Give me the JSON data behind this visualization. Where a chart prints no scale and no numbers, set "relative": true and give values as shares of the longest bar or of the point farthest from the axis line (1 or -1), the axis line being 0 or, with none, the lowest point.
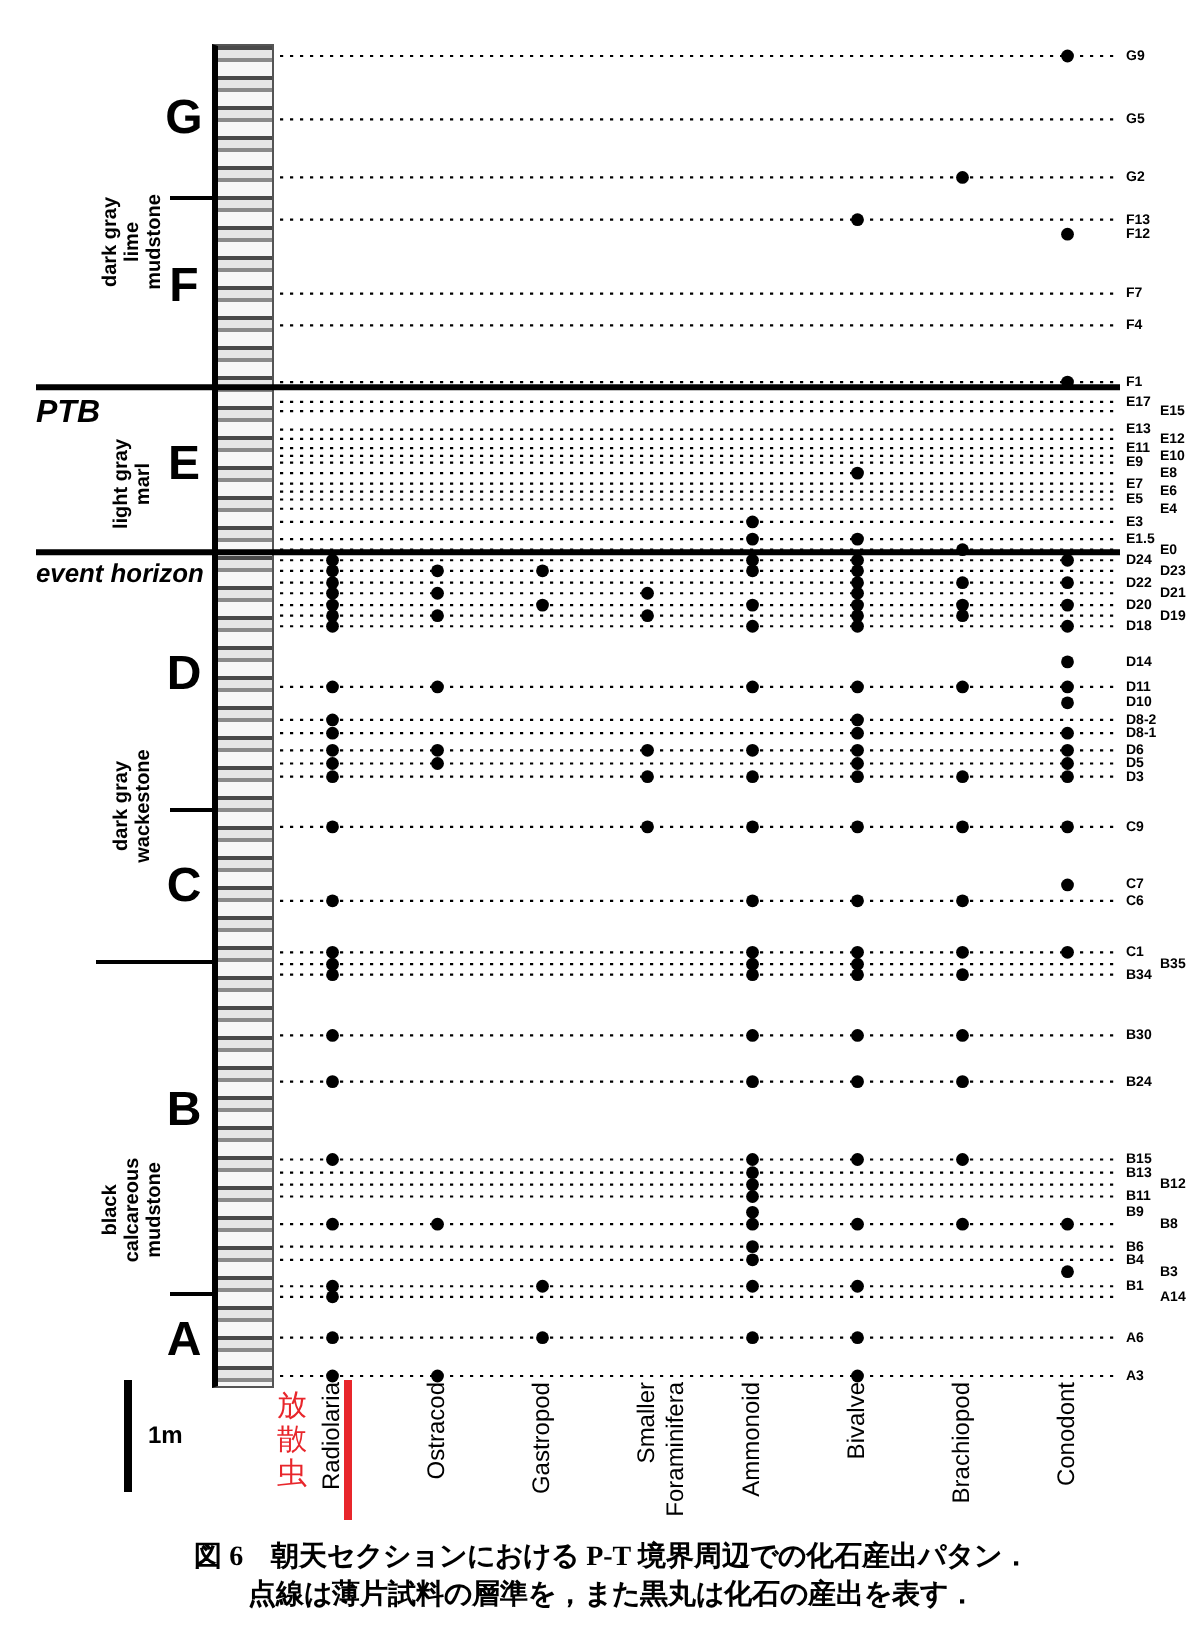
{
  "chart_data": {
    "type": "scatter",
    "relative": true,
    "categories": [
      "Radiolaria",
      "Ostracod",
      "Gastropod",
      "Smaller Foraminifera",
      "Ammonoid",
      "Bivalve",
      "Brachiopod",
      "Conodont"
    ],
    "series": [
      {
        "color": "#000000",
        "x": [
          "Radiolaria",
          "Radiolaria",
          "Radiolaria",
          "Radiolaria",
          "Radiolaria",
          "Radiolaria",
          "Radiolaria",
          "Radiolaria",
          "Radiolaria",
          "Radiolaria",
          "Radiolaria",
          "Radiolaria",
          "Radiolaria",
          "Radiolaria",
          "Radiolaria",
          "Radiolaria",
          "Radiolaria",
          "Radiolaria",
          "Radiolaria",
          "Radiolaria",
          "Radiolaria",
          "Radiolaria",
          "Radiolaria",
          "Radiolaria",
          "Radiolaria",
          "Radiolaria"
        ],
        "values": [
          0.618,
          0.61,
          0.601,
          0.593,
          0.584,
          0.576,
          0.568,
          0.522,
          0.497,
          0.487,
          0.474,
          0.464,
          0.454,
          0.416,
          0.36,
          0.321,
          0.312,
          0.304,
          0.258,
          0.223,
          0.164,
          0.115,
          0.068,
          0.06,
          0.029,
          0
        ]
      },
      {
        "color": "#000000",
        "x": [
          "Ostracod",
          "Ostracod",
          "Ostracod",
          "Ostracod",
          "Ostracod",
          "Ostracod",
          "Ostracod",
          "Ostracod"
        ],
        "values": [
          0.61,
          0.593,
          0.576,
          0.522,
          0.474,
          0.464,
          0.115,
          0
        ]
      },
      {
        "color": "#000000",
        "x": [
          "Gastropod",
          "Gastropod",
          "Gastropod",
          "Gastropod"
        ],
        "values": [
          0.61,
          0.584,
          0.068,
          0.029
        ]
      },
      {
        "color": "#000000",
        "x": [
          "Smaller Foraminifera",
          "Smaller Foraminifera",
          "Smaller Foraminifera",
          "Smaller Foraminifera",
          "Smaller Foraminifera"
        ],
        "values": [
          0.593,
          0.576,
          0.474,
          0.454,
          0.416
        ]
      },
      {
        "color": "#000000",
        "x": [
          "Ammonoid",
          "Ammonoid",
          "Ammonoid",
          "Ammonoid",
          "Ammonoid",
          "Ammonoid",
          "Ammonoid",
          "Ammonoid",
          "Ammonoid",
          "Ammonoid",
          "Ammonoid",
          "Ammonoid",
          "Ammonoid",
          "Ammonoid",
          "Ammonoid",
          "Ammonoid",
          "Ammonoid",
          "Ammonoid",
          "Ammonoid",
          "Ammonoid",
          "Ammonoid",
          "Ammonoid",
          "Ammonoid",
          "Ammonoid",
          "Ammonoid",
          "Ammonoid"
        ],
        "values": [
          0.647,
          0.634,
          0.618,
          0.61,
          0.584,
          0.568,
          0.522,
          0.474,
          0.454,
          0.416,
          0.36,
          0.321,
          0.312,
          0.304,
          0.258,
          0.223,
          0.164,
          0.154,
          0.145,
          0.136,
          0.124,
          0.115,
          0.098,
          0.088,
          0.068,
          0.029
        ]
      },
      {
        "color": "#000000",
        "x": [
          "Bivalve",
          "Bivalve",
          "Bivalve",
          "Bivalve",
          "Bivalve",
          "Bivalve",
          "Bivalve",
          "Bivalve",
          "Bivalve",
          "Bivalve",
          "Bivalve",
          "Bivalve",
          "Bivalve",
          "Bivalve",
          "Bivalve",
          "Bivalve",
          "Bivalve",
          "Bivalve",
          "Bivalve",
          "Bivalve",
          "Bivalve",
          "Bivalve",
          "Bivalve",
          "Bivalve",
          "Bivalve",
          "Bivalve",
          "Bivalve",
          "Bivalve"
        ],
        "values": [
          0.876,
          0.684,
          0.634,
          0.618,
          0.61,
          0.601,
          0.593,
          0.584,
          0.576,
          0.568,
          0.522,
          0.497,
          0.487,
          0.474,
          0.464,
          0.454,
          0.416,
          0.36,
          0.321,
          0.312,
          0.304,
          0.258,
          0.223,
          0.164,
          0.115,
          0.068,
          0.029,
          0
        ]
      },
      {
        "color": "#000000",
        "x": [
          "Brachiopod",
          "Brachiopod",
          "Brachiopod",
          "Brachiopod",
          "Brachiopod",
          "Brachiopod",
          "Brachiopod",
          "Brachiopod",
          "Brachiopod",
          "Brachiopod",
          "Brachiopod",
          "Brachiopod",
          "Brachiopod",
          "Brachiopod",
          "Brachiopod"
        ],
        "values": [
          0.908,
          0.626,
          0.601,
          0.584,
          0.576,
          0.522,
          0.454,
          0.416,
          0.36,
          0.321,
          0.304,
          0.258,
          0.223,
          0.164,
          0.115
        ]
      },
      {
        "color": "#000000",
        "x": [
          "Conodont",
          "Conodont",
          "Conodont",
          "Conodont",
          "Conodont",
          "Conodont",
          "Conodont",
          "Conodont",
          "Conodont",
          "Conodont",
          "Conodont",
          "Conodont",
          "Conodont",
          "Conodont",
          "Conodont",
          "Conodont",
          "Conodont",
          "Conodont",
          "Conodont"
        ],
        "values": [
          1,
          0.865,
          0.753,
          0.618,
          0.601,
          0.584,
          0.568,
          0.541,
          0.522,
          0.51,
          0.487,
          0.474,
          0.464,
          0.454,
          0.416,
          0.372,
          0.321,
          0.115,
          0.079
        ]
      }
    ],
    "ylabel": "1m",
    "marker": "circle",
    "ref_lines": [
      {
        "axis": "y",
        "value": 0.749,
        "label": "PTB"
      },
      {
        "axis": "y",
        "value": 0.624,
        "label": "event horizon"
      },
      {
        "axis": "y",
        "value": 1,
        "label": "G9",
        "line_style": "dotted"
      },
      {
        "axis": "y",
        "value": 0.952,
        "label": "G5",
        "line_style": "dotted"
      },
      {
        "axis": "y",
        "value": 0.908,
        "label": "G2",
        "line_style": "dotted"
      },
      {
        "axis": "y",
        "value": 0.876,
        "label": "F13",
        "line_style": "dotted"
      },
      {
        "axis": "y",
        "value": 0.82,
        "label": "F7",
        "line_style": "dotted"
      },
      {
        "axis": "y",
        "value": 0.796,
        "label": "F4",
        "line_style": "dotted"
      },
      {
        "axis": "y",
        "value": 0.753,
        "label": "F1",
        "line_style": "dotted"
      },
      {
        "axis": "y",
        "value": 0.738,
        "label": "E17",
        "line_style": "dotted"
      },
      {
        "axis": "y",
        "value": 0.731,
        "label": "E15",
        "line_style": "dotted"
      },
      {
        "axis": "y",
        "value": 0.717,
        "label": "E13",
        "line_style": "dotted"
      },
      {
        "axis": "y",
        "value": 0.71,
        "label": "E12",
        "line_style": "dotted"
      },
      {
        "axis": "y",
        "value": 0.703,
        "label": "E11",
        "line_style": "dotted"
      },
      {
        "axis": "y",
        "value": 0.697,
        "label": "E10",
        "line_style": "dotted"
      },
      {
        "axis": "y",
        "value": 0.692,
        "label": "E9",
        "line_style": "dotted"
      },
      {
        "axis": "y",
        "value": 0.684,
        "label": "E8",
        "line_style": "dotted"
      },
      {
        "axis": "y",
        "value": 0.676,
        "label": "E7",
        "line_style": "dotted"
      },
      {
        "axis": "y",
        "value": 0.67,
        "label": "E6",
        "line_style": "dotted"
      },
      {
        "axis": "y",
        "value": 0.664,
        "label": "E5",
        "line_style": "dotted"
      },
      {
        "axis": "y",
        "value": 0.657,
        "label": "E4",
        "line_style": "dotted"
      },
      {
        "axis": "y",
        "value": 0.647,
        "label": "E3",
        "line_style": "dotted"
      },
      {
        "axis": "y",
        "value": 0.634,
        "label": "E1.5",
        "line_style": "dotted"
      },
      {
        "axis": "y",
        "value": 0.626,
        "label": "E0",
        "line_style": "dotted"
      },
      {
        "axis": "y",
        "value": 0.618,
        "label": "D24",
        "line_style": "dotted"
      },
      {
        "axis": "y",
        "value": 0.61,
        "label": "D23",
        "line_style": "dotted"
      },
      {
        "axis": "y",
        "value": 0.601,
        "label": "D22",
        "line_style": "dotted"
      },
      {
        "axis": "y",
        "value": 0.593,
        "label": "D21",
        "line_style": "dotted"
      },
      {
        "axis": "y",
        "value": 0.584,
        "label": "D20",
        "line_style": "dotted"
      },
      {
        "axis": "y",
        "value": 0.576,
        "label": "D19",
        "line_style": "dotted"
      },
      {
        "axis": "y",
        "value": 0.568,
        "label": "D18",
        "line_style": "dotted"
      },
      {
        "axis": "y",
        "value": 0.522,
        "label": "D11",
        "line_style": "dotted"
      },
      {
        "axis": "y",
        "value": 0.497,
        "label": "D8-2",
        "line_style": "dotted"
      },
      {
        "axis": "y",
        "value": 0.487,
        "label": "D8-1",
        "line_style": "dotted"
      },
      {
        "axis": "y",
        "value": 0.474,
        "label": "D6",
        "line_style": "dotted"
      },
      {
        "axis": "y",
        "value": 0.464,
        "label": "D5",
        "line_style": "dotted"
      },
      {
        "axis": "y",
        "value": 0.454,
        "label": "D3",
        "line_style": "dotted"
      },
      {
        "axis": "y",
        "value": 0.416,
        "label": "C9",
        "line_style": "dotted"
      },
      {
        "axis": "y",
        "value": 0.36,
        "label": "C6",
        "line_style": "dotted"
      },
      {
        "axis": "y",
        "value": 0.321,
        "label": "C1",
        "line_style": "dotted"
      },
      {
        "axis": "y",
        "value": 0.312,
        "label": "B35",
        "line_style": "dotted"
      },
      {
        "axis": "y",
        "value": 0.304,
        "label": "B34",
        "line_style": "dotted"
      },
      {
        "axis": "y",
        "value": 0.258,
        "label": "B30",
        "line_style": "dotted"
      },
      {
        "axis": "y",
        "value": 0.223,
        "label": "B24",
        "line_style": "dotted"
      },
      {
        "axis": "y",
        "value": 0.164,
        "label": "B15",
        "line_style": "dotted"
      },
      {
        "axis": "y",
        "value": 0.154,
        "label": "B13",
        "line_style": "dotted"
      },
      {
        "axis": "y",
        "value": 0.145,
        "label": "B12",
        "line_style": "dotted"
      },
      {
        "axis": "y",
        "value": 0.136,
        "label": "B11",
        "line_style": "dotted"
      },
      {
        "axis": "y",
        "value": 0.115,
        "label": "B8",
        "line_style": "dotted"
      },
      {
        "axis": "y",
        "value": 0.098,
        "label": "B6",
        "line_style": "dotted"
      },
      {
        "axis": "y",
        "value": 0.088,
        "label": "B4",
        "line_style": "dotted"
      },
      {
        "axis": "y",
        "value": 0.068,
        "label": "B1",
        "line_style": "dotted"
      },
      {
        "axis": "y",
        "value": 0.06,
        "label": "A14",
        "line_style": "dotted"
      },
      {
        "axis": "y",
        "value": 0.029,
        "label": "A6",
        "line_style": "dotted"
      },
      {
        "axis": "y",
        "value": 0,
        "label": "A3",
        "line_style": "dotted"
      }
    ],
    "annotations": [
      "F12",
      "D14",
      "D10",
      "C7",
      "B9",
      "B3",
      "G",
      "F",
      "E",
      "D",
      "C",
      "B",
      "A",
      "dark gray lime mudstone",
      "light gray marl",
      "dark gray wackestone",
      "black calcareous mudstone",
      "放散虫",
      "図 6　朝天セクションにおける P-T 境界周辺での化石産出パタン．",
      "点線は薄片試料の層準を，また黒丸は化石の産出を表す．"
    ]
  }
}
